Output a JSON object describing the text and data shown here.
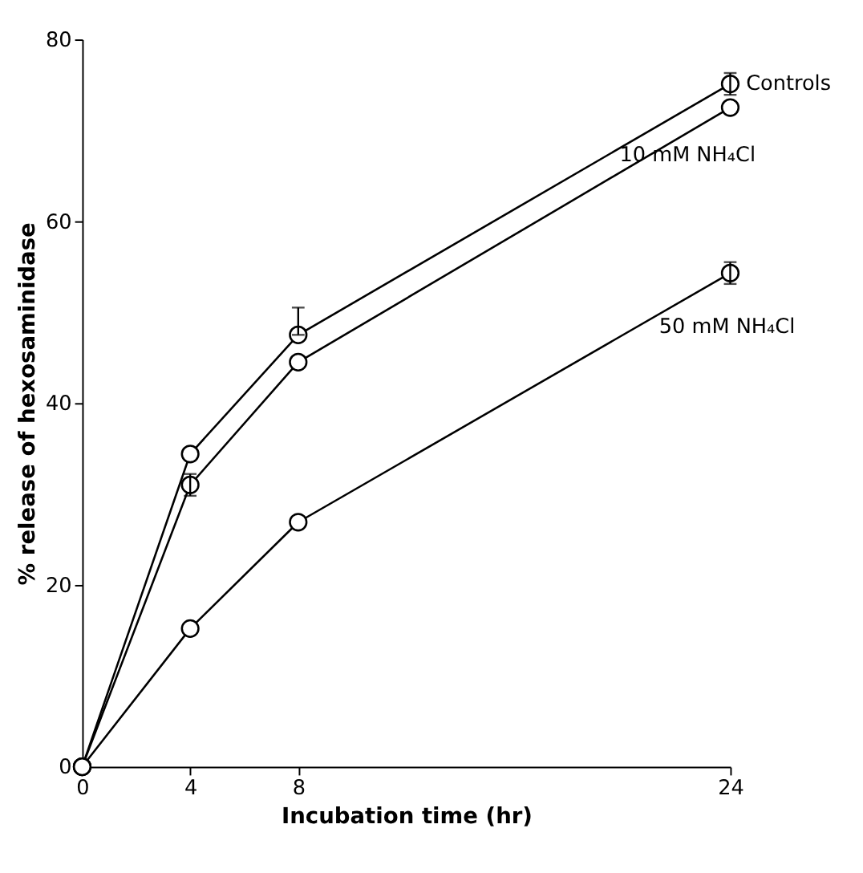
{
  "chart_data": {
    "type": "line",
    "xlabel": "Incubation time (hr)",
    "ylabel": "% release of hexosaminidase",
    "x": [
      0,
      4,
      8,
      24
    ],
    "series": [
      {
        "name": "Controls",
        "color": "#000000",
        "values": [
          0,
          34.4,
          47.5,
          75.1
        ],
        "errors": [
          null,
          null,
          [
            47.5,
            50.5
          ],
          1.2
        ]
      },
      {
        "name": "10 mM NH₄Cl",
        "color": "#000000",
        "values": [
          0,
          31,
          44.5,
          72.5
        ],
        "errors": [
          null,
          1.2,
          null,
          null
        ]
      },
      {
        "name": "50 mM NH₄Cl",
        "color": "#000000",
        "values": [
          0,
          15.2,
          26.9,
          54.3
        ],
        "errors": [
          null,
          null,
          null,
          1.2
        ]
      }
    ],
    "xlim": [
      0,
      24
    ],
    "xticks": [
      0,
      4,
      8,
      24
    ],
    "ylim": [
      0,
      80
    ],
    "yticks": [
      0,
      20,
      40,
      60,
      80
    ],
    "grid": false,
    "marker": "circle",
    "line_style": "solid"
  }
}
